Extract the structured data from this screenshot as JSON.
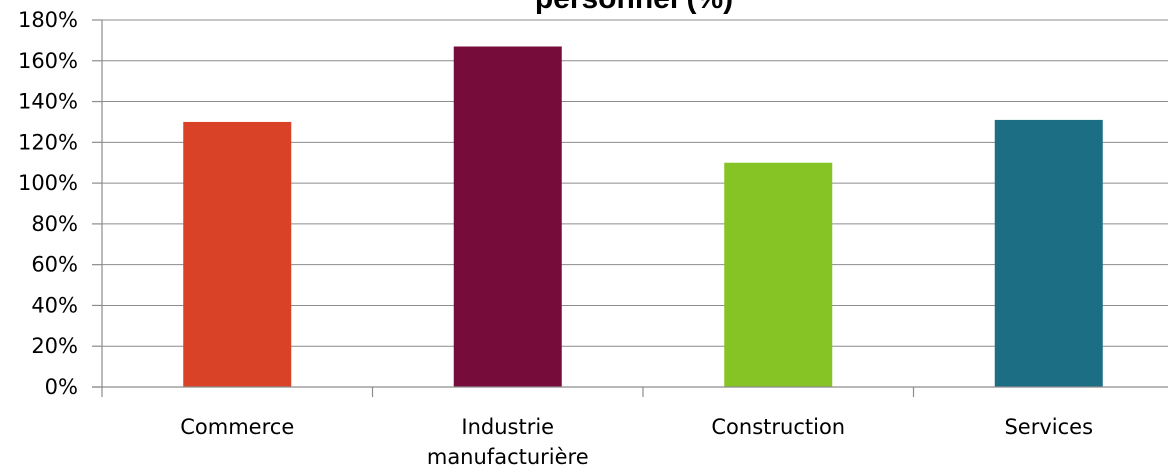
{
  "chart_data": {
    "type": "bar",
    "title": "personnel (%)",
    "categories": [
      "Commerce",
      "Industrie manufacturière",
      "Construction",
      "Services"
    ],
    "category_lines": [
      [
        "Commerce"
      ],
      [
        "Industrie",
        "manufacturière"
      ],
      [
        "Construction"
      ],
      [
        "Services"
      ]
    ],
    "values": [
      130,
      167,
      110,
      131
    ],
    "colors": [
      "#d94227",
      "#760c3a",
      "#86c425",
      "#1b6e84"
    ],
    "ylim": [
      0,
      180
    ],
    "ytick_values": [
      0,
      20,
      40,
      60,
      80,
      100,
      120,
      140,
      160,
      180
    ],
    "ytick_labels": [
      "0%",
      "20%",
      "40%",
      "60%",
      "80%",
      "100%",
      "120%",
      "140%",
      "160%",
      "180%"
    ],
    "grid": true,
    "legend": "none",
    "xlabel": "",
    "ylabel": ""
  }
}
